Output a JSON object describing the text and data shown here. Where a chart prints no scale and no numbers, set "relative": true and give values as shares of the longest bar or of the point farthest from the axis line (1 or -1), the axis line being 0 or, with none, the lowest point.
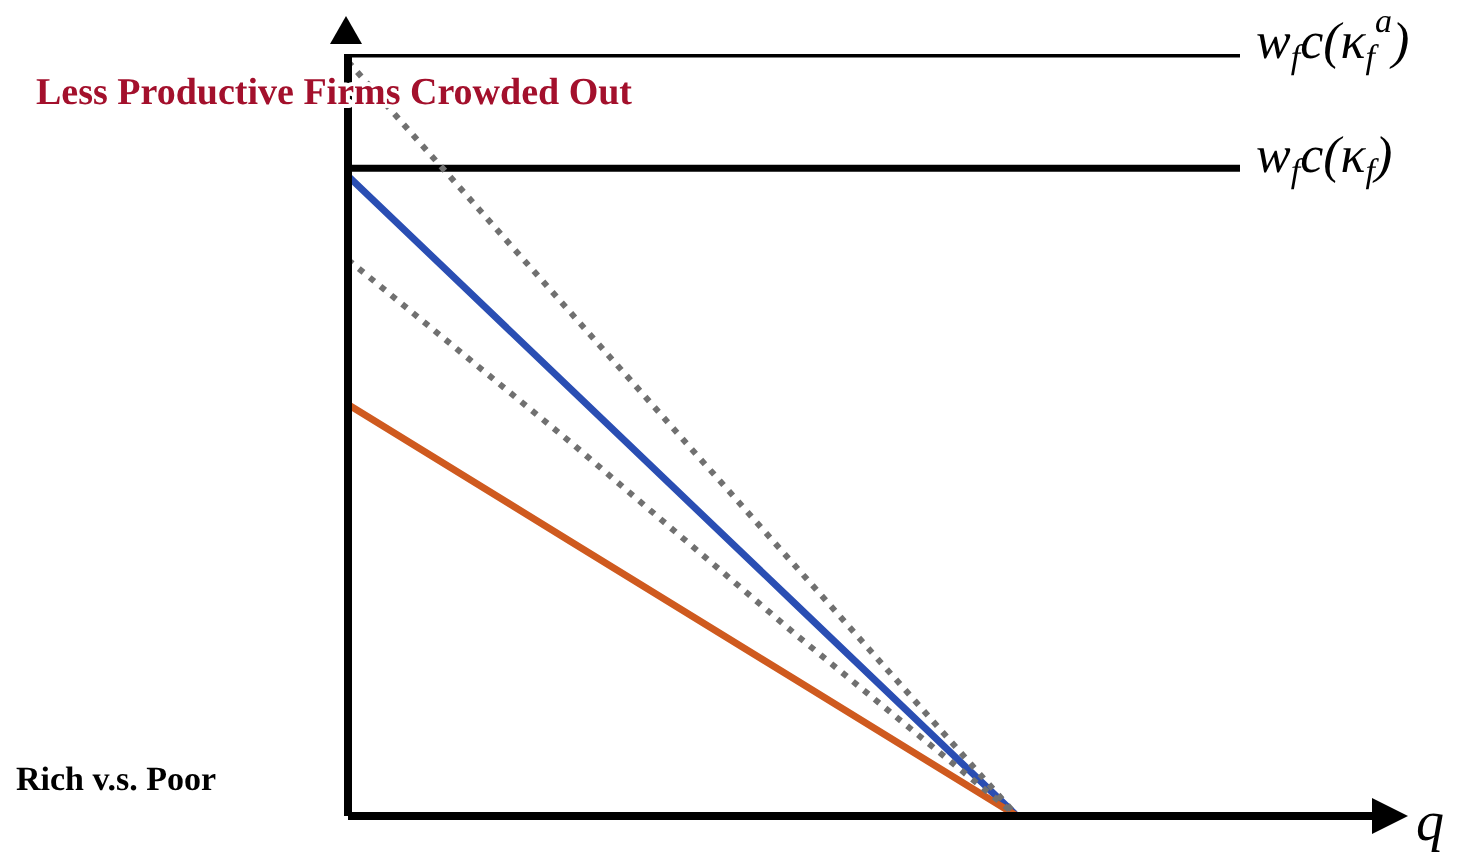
{
  "chart_data": {
    "type": "line",
    "relative": true,
    "title": "Less Productive Firms Crowded Out",
    "xlabel": "q",
    "categories": [
      null,
      null,
      null,
      null,
      null
    ],
    "series": [
      {
        "name": "w$_{f}$c(κ$_{f}$$^{a}$)",
        "color": "#000000",
        "values": [
          1,
          1,
          1,
          1,
          1
        ],
        "line_style": "solid"
      },
      {
        "name": "w$_{f}$c(κ$_{f}$)",
        "color": "#000000",
        "values": [
          0.85,
          0.85,
          0.85,
          0.85,
          0.85
        ],
        "line_style": "solid"
      },
      {
        "color": "#2a4eb3",
        "values": [
          0.84,
          0.56,
          0.28,
          0,
          null
        ],
        "line_style": "solid"
      },
      {
        "color": "#cf5a1f",
        "values": [
          0.54,
          0.36,
          0.18,
          0,
          null
        ],
        "line_style": "solid"
      },
      {
        "color": "#707070",
        "values": [
          0.99,
          0.66,
          0.33,
          0,
          null
        ],
        "line_style": "dotted"
      },
      {
        "color": "#707070",
        "values": [
          0.73,
          0.49,
          0.24,
          0,
          null
        ],
        "line_style": "dotted"
      }
    ],
    "annotations": [
      "Rich v.s. Poor"
    ],
    "grid": false,
    "legend": false
  }
}
